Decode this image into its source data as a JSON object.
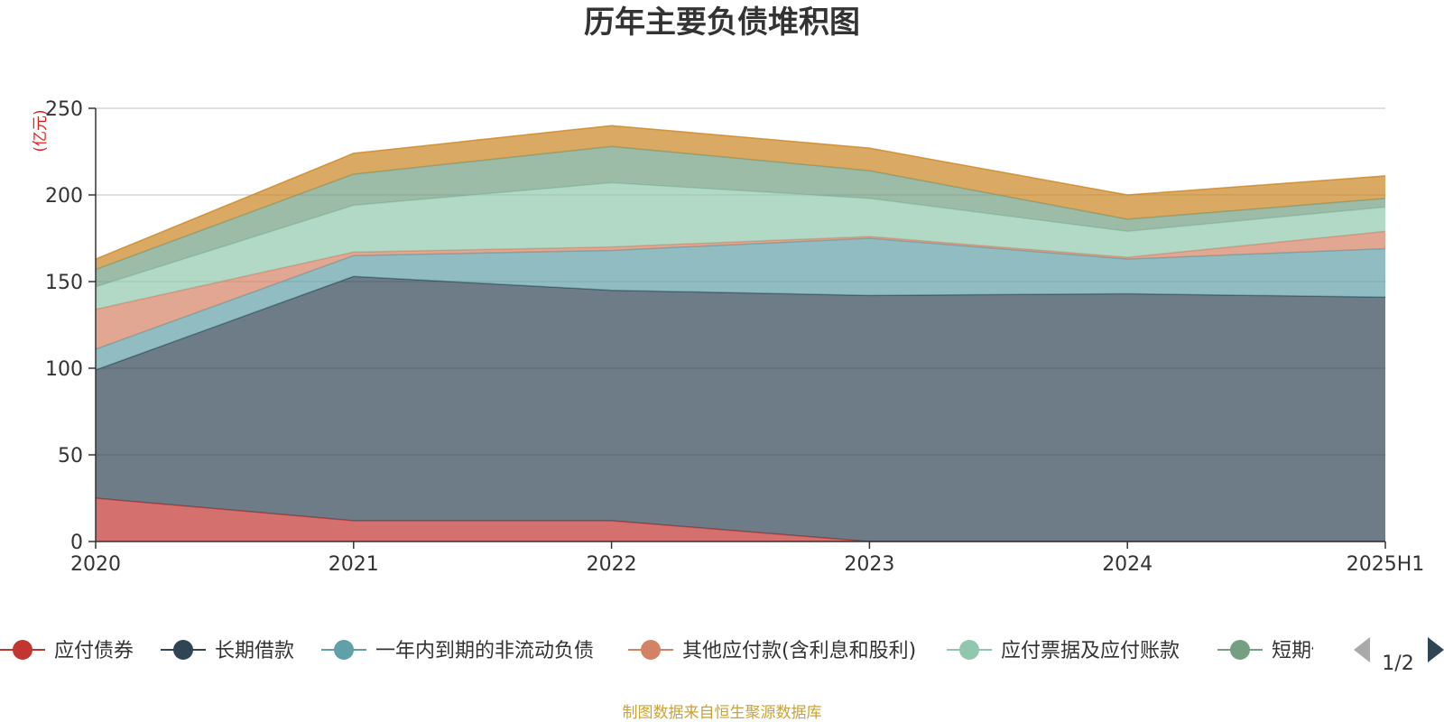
{
  "chart_data": {
    "type": "area",
    "stacked": true,
    "title": "历年主要负债堆积图",
    "unit_label": "(亿元)",
    "categories": [
      "2020",
      "2021",
      "2022",
      "2023",
      "2024",
      "2025H1"
    ],
    "ylim": [
      0,
      250
    ],
    "yticks": [
      0,
      50,
      100,
      150,
      200,
      250
    ],
    "grid": true,
    "series": [
      {
        "name": "应付债券",
        "values": [
          25,
          12,
          12,
          0,
          0,
          0
        ]
      },
      {
        "name": "长期借款",
        "values": [
          74,
          141,
          133,
          142,
          143,
          141
        ]
      },
      {
        "name": "一年内到期的非流动负债",
        "values": [
          12,
          12,
          23,
          33,
          20,
          28
        ]
      },
      {
        "name": "其他应付款(含利息和股利)",
        "values": [
          23,
          2,
          2,
          1,
          1,
          10
        ]
      },
      {
        "name": "应付票据及应付账款",
        "values": [
          13,
          27,
          37,
          22,
          15,
          14
        ]
      },
      {
        "name": "短期借款",
        "values": [
          10,
          18,
          21,
          16,
          7,
          5
        ]
      },
      {
        "name": "",
        "values": [
          6,
          12,
          12,
          13,
          14,
          13
        ]
      }
    ],
    "colors": [
      "#c23531",
      "#2f4554",
      "#61a0a8",
      "#d48265",
      "#91c7ae",
      "#749f83",
      "#ca8622"
    ],
    "legend": {
      "position": "bottom",
      "page": "1/2"
    }
  },
  "footer": {
    "source": "制图数据来自恒生聚源数据库"
  }
}
